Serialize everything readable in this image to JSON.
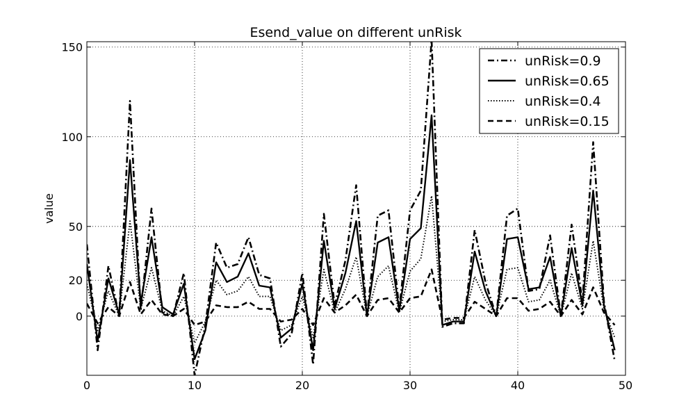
{
  "chart_data": {
    "type": "line",
    "title": "Esend_value on different unRisk",
    "xlabel": "",
    "ylabel": "value",
    "xlim": [
      0,
      50
    ],
    "ylim": [
      -33,
      153
    ],
    "xticks": [
      0,
      10,
      20,
      30,
      40,
      50
    ],
    "yticks": [
      0,
      20,
      50,
      100,
      150
    ],
    "grid": true,
    "legend_position": "top-right",
    "x": [
      0,
      1,
      2,
      3,
      4,
      5,
      6,
      7,
      8,
      9,
      10,
      11,
      12,
      13,
      14,
      15,
      16,
      17,
      18,
      19,
      20,
      21,
      22,
      23,
      24,
      25,
      26,
      27,
      28,
      29,
      30,
      31,
      32,
      33,
      34,
      35,
      36,
      37,
      38,
      39,
      40,
      41,
      42,
      43,
      44,
      45,
      46,
      47,
      48,
      49
    ],
    "series": [
      {
        "name": "unRisk=0.9",
        "style": "dashdot",
        "values": [
          40,
          -19,
          28,
          0,
          120,
          3,
          60,
          2,
          0,
          24,
          -33,
          -5,
          41,
          27,
          29,
          44,
          23,
          21,
          -17,
          -10,
          24,
          -27,
          57,
          6,
          31,
          73,
          0,
          56,
          59,
          4,
          59,
          70,
          154,
          -6,
          -4,
          -4,
          48,
          19,
          0,
          56,
          60,
          14,
          15,
          45,
          0,
          51,
          8,
          97,
          8,
          -25
        ]
      },
      {
        "name": "unRisk=0.65",
        "style": "solid",
        "values": [
          29,
          -14,
          21,
          1,
          87,
          7,
          44,
          5,
          1,
          18,
          -24,
          -8,
          30,
          19,
          22,
          35,
          17,
          16,
          -12,
          -7,
          18,
          -19,
          42,
          4,
          24,
          53,
          0,
          41,
          44,
          3,
          43,
          49,
          112,
          -5,
          -3,
          -3,
          36,
          14,
          0,
          43,
          44,
          15,
          16,
          33,
          0,
          38,
          6,
          70,
          6,
          -19
        ]
      },
      {
        "name": "unRisk=0.4",
        "style": "dotted",
        "values": [
          18,
          -8,
          14,
          0,
          53,
          4,
          27,
          3,
          0,
          11,
          -15,
          -3,
          20,
          12,
          14,
          22,
          11,
          11,
          -8,
          -5,
          11,
          -12,
          26,
          2,
          15,
          33,
          0,
          22,
          28,
          2,
          25,
          32,
          67,
          -3,
          -2,
          -2,
          22,
          9,
          0,
          26,
          27,
          8,
          9,
          20,
          0,
          24,
          4,
          42,
          4,
          -12
        ]
      },
      {
        "name": "unRisk=0.15",
        "style": "dashed",
        "values": [
          7,
          -4,
          5,
          0,
          19,
          1,
          9,
          1,
          0,
          4,
          -5,
          -3,
          6,
          5,
          5,
          8,
          4,
          4,
          -3,
          -2,
          4,
          -5,
          10,
          2,
          6,
          12,
          0,
          9,
          10,
          2,
          10,
          11,
          26,
          -2,
          -1,
          -1,
          8,
          4,
          0,
          10,
          10,
          3,
          4,
          8,
          0,
          9,
          1,
          16,
          2,
          -5
        ]
      }
    ]
  }
}
